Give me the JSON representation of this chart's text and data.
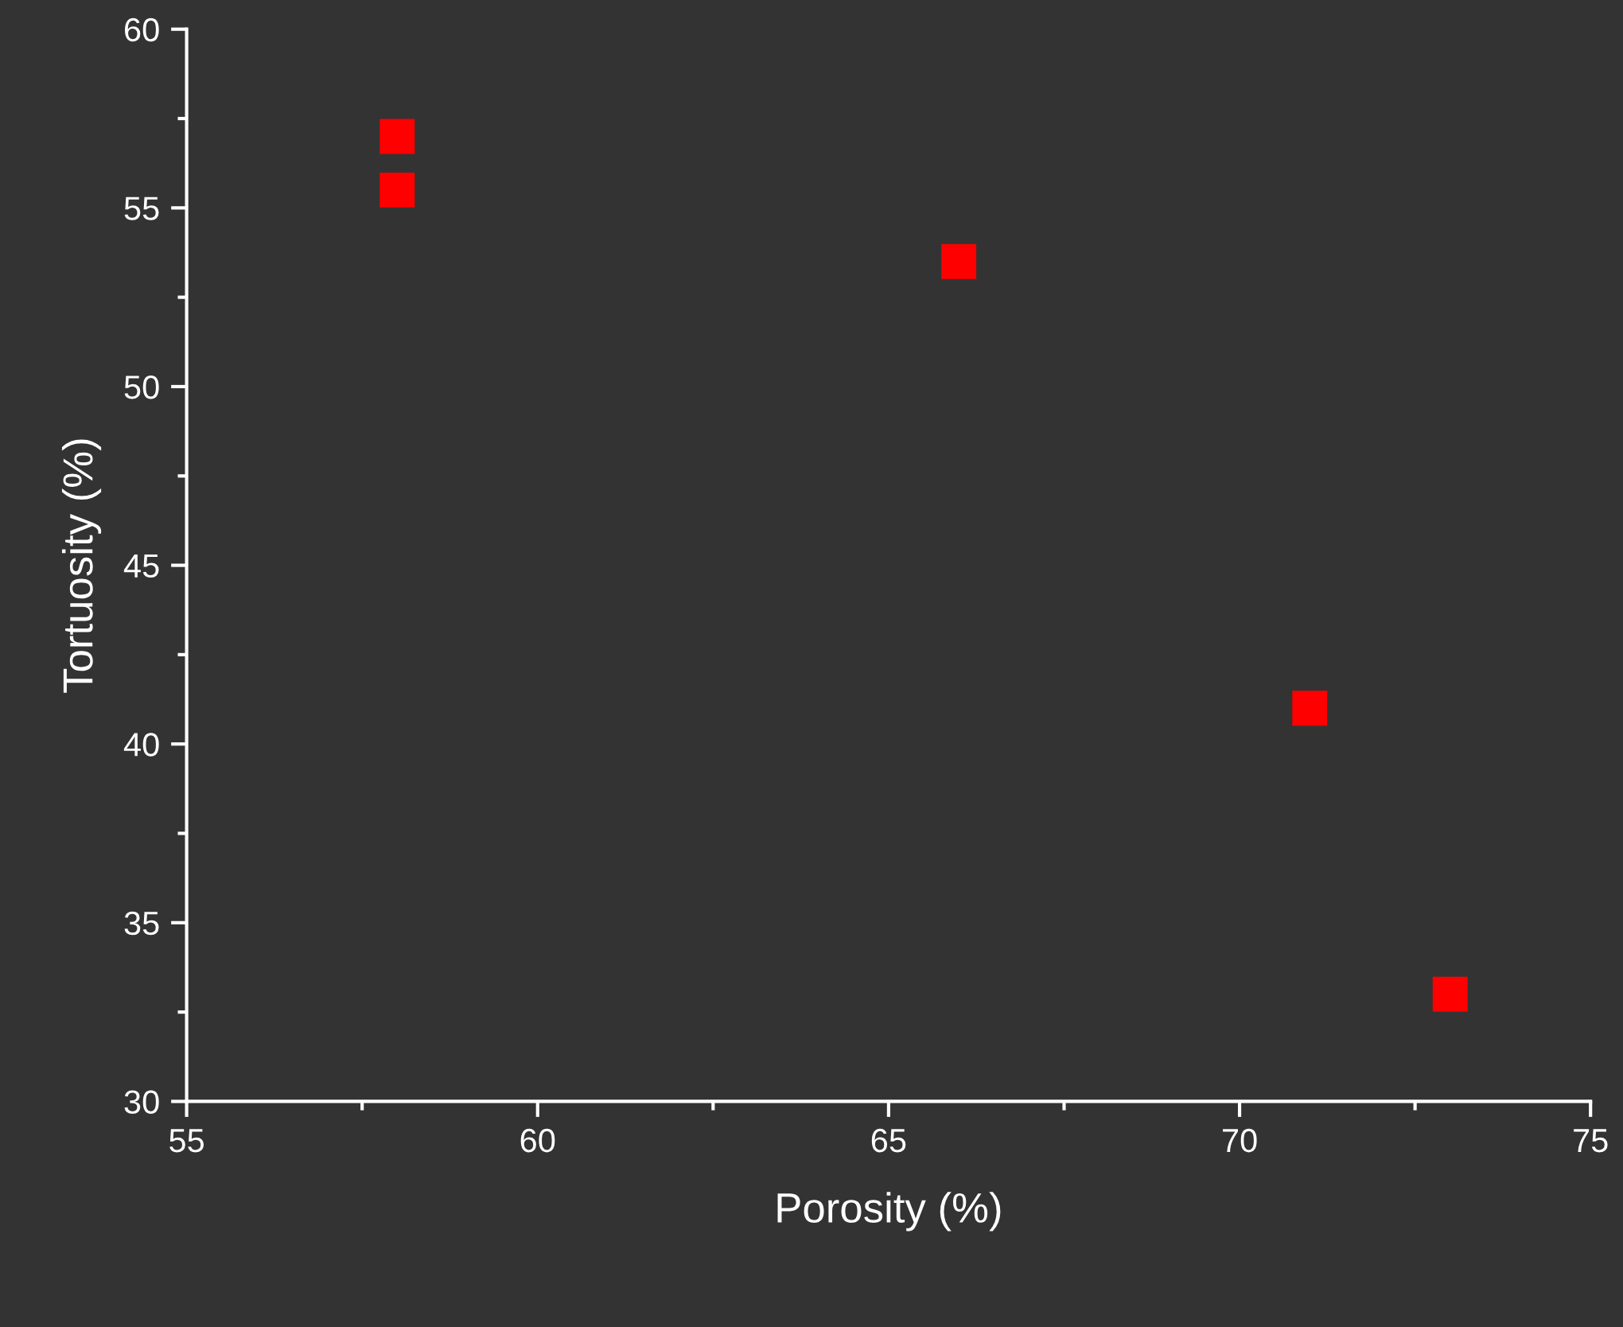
{
  "chart_data": {
    "type": "scatter",
    "xlabel": "Porosity (%)",
    "ylabel": "Tortuosity (%)",
    "x": [
      58,
      58,
      66,
      71,
      73
    ],
    "series": [
      {
        "color": "#ff0000",
        "values": [
          57,
          55.5,
          53.5,
          41,
          33
        ]
      }
    ],
    "marker": "square",
    "xlim": [
      55,
      75
    ],
    "ylim": [
      30,
      60
    ],
    "xticks": [
      55,
      {
        "value": 57.5,
        "label": null
      },
      60,
      {
        "value": 62.5,
        "label": null
      },
      65,
      {
        "value": 67.5,
        "label": null
      },
      70,
      {
        "value": 72.5,
        "label": null
      },
      75
    ],
    "yticks": [
      30,
      {
        "value": 32.5,
        "label": null
      },
      35,
      {
        "value": 37.5,
        "label": null
      },
      40,
      {
        "value": 42.5,
        "label": null
      },
      45,
      {
        "value": 47.5,
        "label": null
      },
      50,
      {
        "value": 52.5,
        "label": null
      },
      55,
      {
        "value": 57.5,
        "label": null
      },
      60
    ],
    "grid": false
  }
}
